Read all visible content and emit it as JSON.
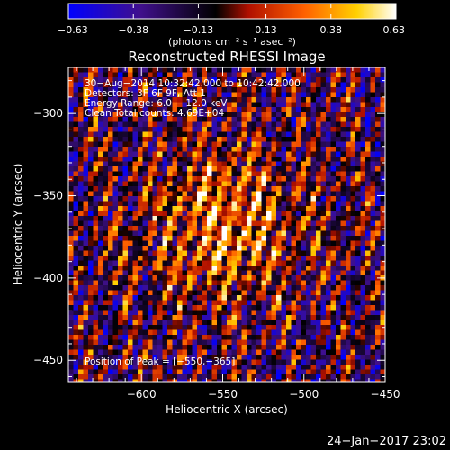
{
  "chart_data": {
    "type": "heatmap",
    "title": "Reconstructed RHESSI Image",
    "xlabel": "Heliocentric X (arcsec)",
    "ylabel": "Heliocentric Y (arcsec)",
    "xlim": [
      -645,
      -450
    ],
    "ylim": [
      -463,
      -272
    ],
    "x_ticks": [
      -600,
      -550,
      -500,
      -450
    ],
    "y_ticks": [
      -300,
      -350,
      -400,
      -450
    ],
    "x_tick_labels": [
      "−600",
      "−550",
      "−500",
      "−450"
    ],
    "y_tick_labels": [
      "−300",
      "−350",
      "−400",
      "−450"
    ],
    "colorbar": {
      "range": [
        -0.63,
        0.63
      ],
      "ticks": [
        -0.63,
        -0.38,
        -0.13,
        0.13,
        0.38,
        0.63
      ],
      "tick_labels": [
        "−0.63",
        "−0.38",
        "−0.13",
        "0.13",
        "0.38",
        "0.63"
      ],
      "unit_label": "(photons cm⁻² s⁻¹ asec⁻²)"
    },
    "annotations": {
      "time_range": "30−Aug−2014 10:32:42.000 to 10:42:42.000",
      "detectors": "Detectors: 3F 6F 9F, Att 1",
      "energy": "Energy Range: 6.0 − 12.0 keV",
      "clean": "Clean     Total counts: 4.69E+04",
      "peak": "Position of Peak = [−550,−365]"
    },
    "peak_position": [
      -550,
      -365
    ],
    "grid": false
  },
  "footer": {
    "date": "24−Jan−2017 23:02"
  },
  "colors": {
    "background": "#000000",
    "colormap": [
      "#0000ff",
      "#3a0a9a",
      "#000000",
      "#c01000",
      "#ff8000",
      "#ffff00",
      "#ffffff"
    ]
  }
}
